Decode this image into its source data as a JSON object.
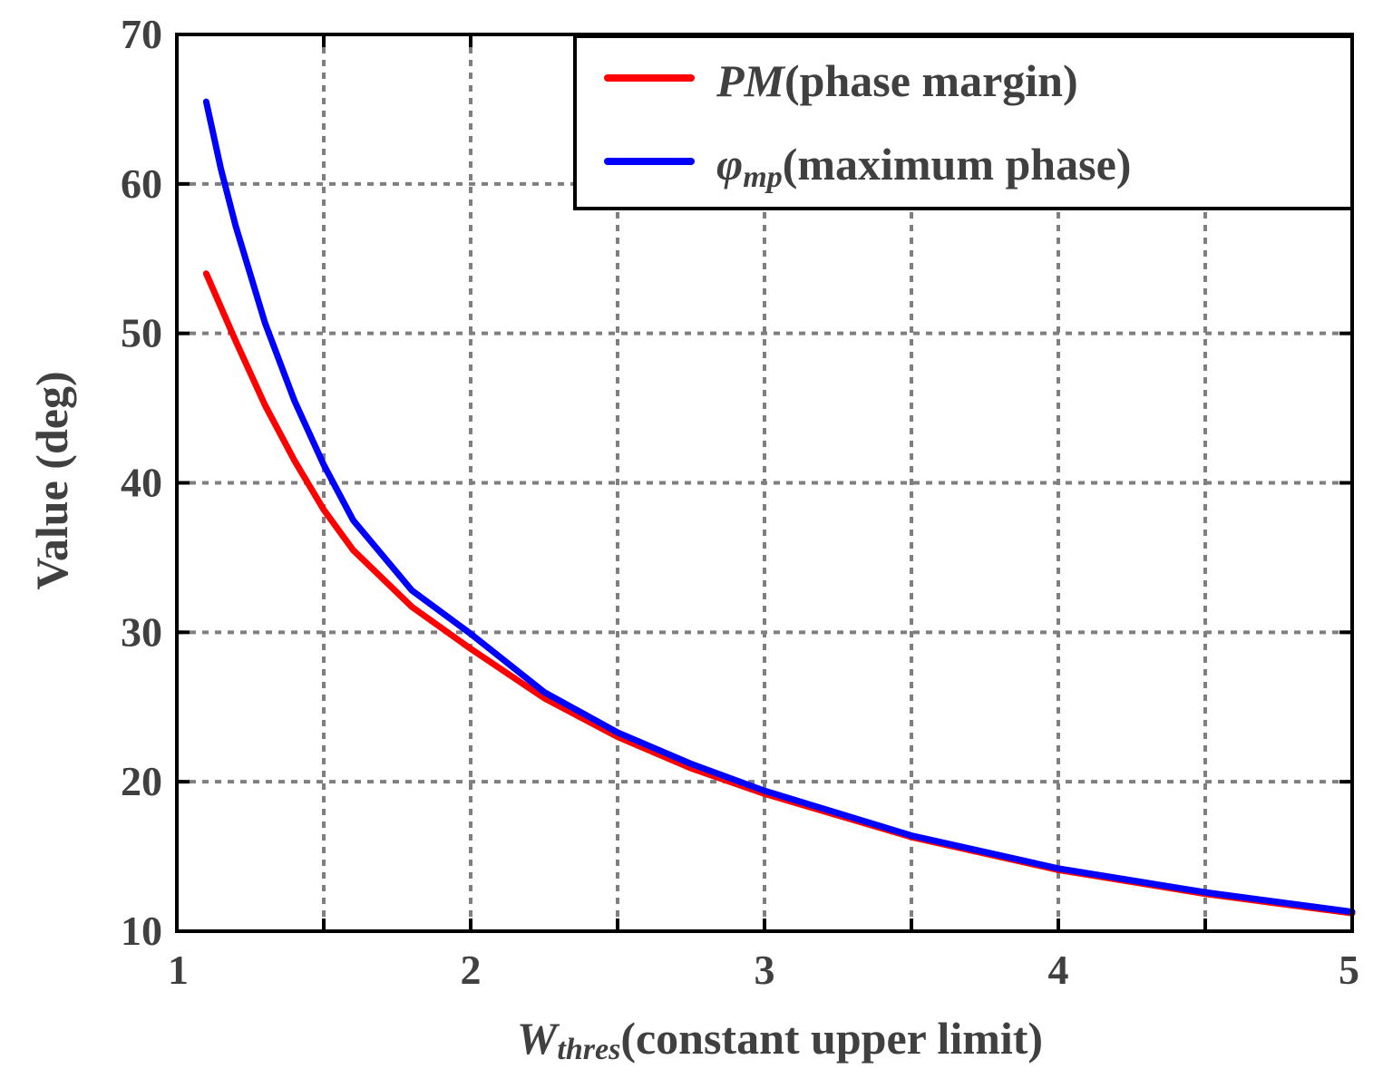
{
  "chart_data": {
    "type": "line",
    "xlim": [
      1,
      5
    ],
    "ylim": [
      10,
      70
    ],
    "x_ticks": [
      "1",
      "2",
      "3",
      "4",
      "5"
    ],
    "y_ticks": [
      "10",
      "20",
      "30",
      "40",
      "50",
      "60",
      "70"
    ],
    "grid": true,
    "legend_position": "top-right",
    "xlabel": {
      "symbol": "W",
      "subscript": "thres",
      "rest": "(constant upper limit)"
    },
    "ylabel": "Value (deg)",
    "series": [
      {
        "name": "PM(phase margin)",
        "legend_symbol": "PM",
        "legend_rest": "(phase margin)",
        "color": "#ff0000",
        "x": [
          1.1,
          1.2,
          1.3,
          1.4,
          1.5,
          1.6,
          1.8,
          2.0,
          2.25,
          2.5,
          2.75,
          3.0,
          3.5,
          4.0,
          4.5,
          5.0
        ],
        "y": [
          54,
          49.5,
          45.2,
          41.5,
          38.2,
          35.5,
          31.7,
          28.9,
          25.6,
          23.0,
          20.9,
          19.2,
          16.3,
          14.1,
          12.5,
          11.2
        ]
      },
      {
        "name": "φmp(maximum phase)",
        "legend_symbol": "φ",
        "legend_subscript": "mp",
        "legend_rest": "(maximum phase)",
        "color": "#0000ff",
        "x": [
          1.1,
          1.15,
          1.2,
          1.3,
          1.4,
          1.5,
          1.6,
          1.8,
          2.0,
          2.25,
          2.5,
          2.75,
          3.0,
          3.5,
          4.0,
          4.5,
          5.0
        ],
        "y": [
          65.5,
          61,
          57.2,
          50.7,
          45.5,
          41.2,
          37.5,
          32.8,
          29.9,
          26.0,
          23.3,
          21.2,
          19.4,
          16.4,
          14.2,
          12.6,
          11.3
        ]
      }
    ]
  }
}
